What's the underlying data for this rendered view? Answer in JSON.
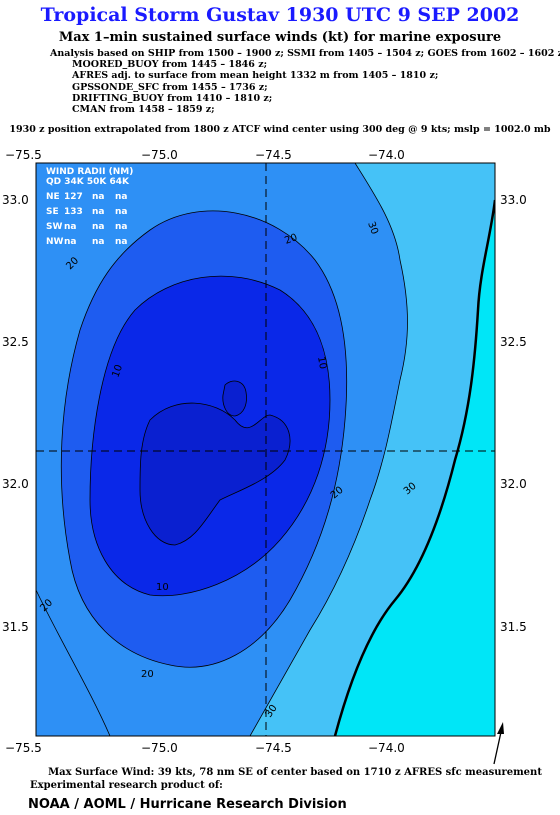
{
  "title": "Tropical Storm Gustav 1930 UTC 9 SEP 2002",
  "subtitle": "Max 1–min sustained surface winds (kt) for marine exposure",
  "analysis_lines": [
    "Analysis based on  SHIP from 1500 – 1900 z;  SSMI from 1405 – 1504 z;  GOES from 1602 – 1602 z;",
    "MOORED_BUOY from 1445 – 1846 z;",
    "AFRES adj. to surface from mean height 1332 m from 1405 – 1810 z;",
    "GPSSONDE_SFC from 1455 – 1736 z;",
    "DRIFTING_BUOY from 1410 – 1810 z;",
    "CMAN from 1458 – 1859 z;"
  ],
  "position_line": "1930 z position extrapolated from 1800 z ATCF wind center using 300 deg @ 9 kts; mslp = 1002.0 mb",
  "map": {
    "lon_ticks": [
      "−75.5",
      "−75.0",
      "−74.5",
      "−74.0"
    ],
    "lat_ticks": [
      "33.0",
      "32.5",
      "32.0",
      "31.5"
    ],
    "contour_labels": [
      "30",
      "20",
      "20",
      "10",
      "10",
      "20",
      "30",
      "10",
      "20",
      "20",
      "30"
    ],
    "colors": {
      "c0_10": "#0a28e8",
      "c10_20": "#1e5cf0",
      "c20_30": "#2e90f5",
      "c30_40": "#45c2f7",
      "c40_plus": "#00e6f7"
    }
  },
  "wind_radii": {
    "header1": "WIND RADII (NM)",
    "header2": "QD 34K 50K 64K",
    "rows": [
      {
        "qd": "NE",
        "r34": "127",
        "r50": "na",
        "r64": "na"
      },
      {
        "qd": "SE",
        "r34": "133",
        "r50": "na",
        "r64": "na"
      },
      {
        "qd": "SW",
        "r34": "na",
        "r50": "na",
        "r64": "na"
      },
      {
        "qd": "NW",
        "r34": "na",
        "r50": "na",
        "r64": "na"
      }
    ]
  },
  "footer": {
    "max_wind": "Max Surface Wind: 39 kts, 78 nm SE of center based on 1710 z AFRES sfc measurement",
    "product": "Experimental research product of:",
    "org": "NOAA / AOML / Hurricane Research Division"
  }
}
